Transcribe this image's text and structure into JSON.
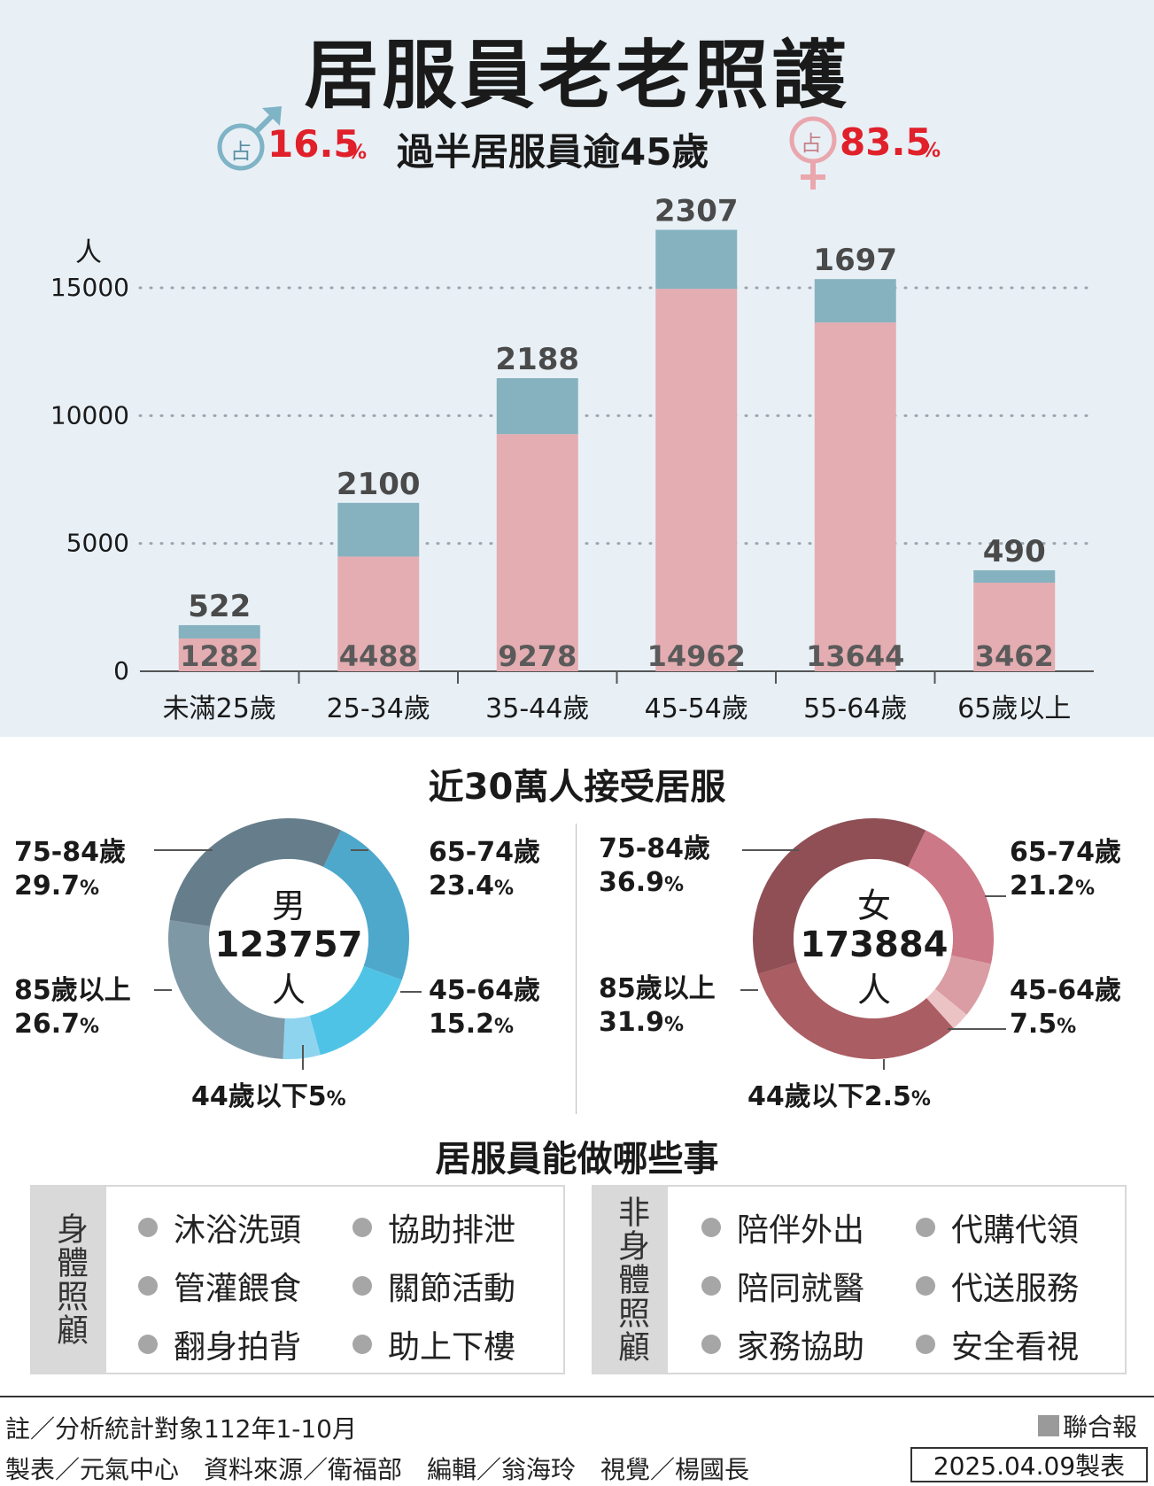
{
  "title": "居服員老老照護",
  "subtitle": {
    "text": "過半居服員逾45歲",
    "male": {
      "prefix": "占",
      "value": "16.5",
      "unit": "%"
    },
    "female": {
      "prefix": "占",
      "value": "83.5",
      "unit": "%"
    }
  },
  "chart_data": [
    {
      "type": "bar",
      "stacked": true,
      "ylabel": "人",
      "ylim": [
        0,
        15000
      ],
      "yticks": [
        0,
        5000,
        10000,
        15000
      ],
      "grid": "dotted horizontal",
      "categories": [
        "未滿25歲",
        "25-34歲",
        "35-44歲",
        "45-54歲",
        "55-64歲",
        "65歲以上"
      ],
      "series": [
        {
          "values": [
            1282,
            4488,
            9278,
            14962,
            13644,
            3462
          ],
          "color": "#e4adb2"
        },
        {
          "values": [
            522,
            2100,
            2188,
            2307,
            1697,
            490
          ],
          "color": "#86b2c0"
        }
      ]
    },
    {
      "type": "pie",
      "center": {
        "line1": "男",
        "line2": "123757",
        "line3": "人"
      },
      "slices": [
        {
          "label": "65-74歲",
          "value": 23.4,
          "color": "#4ea8cc"
        },
        {
          "label": "45-64歲",
          "value": 15.2,
          "color": "#4fc3e6"
        },
        {
          "label": "44歲以下",
          "value": 5,
          "color": "#8fd4ef"
        },
        {
          "label": "85歲以上",
          "value": 26.7,
          "color": "#7f98a5"
        },
        {
          "label": "75-84歲",
          "value": 29.7,
          "color": "#667e8b"
        }
      ]
    },
    {
      "type": "pie",
      "center": {
        "line1": "女",
        "line2": "173884",
        "line3": "人"
      },
      "slices": [
        {
          "label": "65-74歲",
          "value": 21.2,
          "color": "#cd7886"
        },
        {
          "label": "45-64歲",
          "value": 7.5,
          "color": "#d99da3"
        },
        {
          "label": "44歲以下",
          "value": 2.5,
          "color": "#ecc3c5"
        },
        {
          "label": "85歲以上",
          "value": 31.9,
          "color": "#aa5d62"
        },
        {
          "label": "75-84歲",
          "value": 36.9,
          "color": "#8f4f55"
        }
      ]
    }
  ],
  "donut_section": {
    "title": "近30萬人接受居服",
    "male_labels": {
      "a": {
        "name": "75-84歲",
        "pct": "29.7",
        "unit": "%"
      },
      "b": {
        "name": "65-74歲",
        "pct": "23.4",
        "unit": "%"
      },
      "c": {
        "name": "85歲以上",
        "pct": "26.7",
        "unit": "%"
      },
      "d": {
        "name": "45-64歲",
        "pct": "15.2",
        "unit": "%"
      },
      "e": {
        "name": "44歲以下5",
        "unit": "%"
      }
    },
    "female_labels": {
      "a": {
        "name": "75-84歲",
        "pct": "36.9",
        "unit": "%"
      },
      "b": {
        "name": "65-74歲",
        "pct": "21.2",
        "unit": "%"
      },
      "c": {
        "name": "85歲以上",
        "pct": "31.9",
        "unit": "%"
      },
      "d": {
        "name": "45-64歲",
        "pct": "7.5",
        "unit": "%"
      },
      "e": {
        "name": "44歲以下2.5",
        "unit": "%"
      }
    }
  },
  "tasks": {
    "title": "居服員能做哪些事",
    "physical": {
      "label": "身體照顧",
      "items": [
        "沐浴洗頭",
        "協助排泄",
        "管灌餵食",
        "關節活動",
        "翻身拍背",
        "助上下樓"
      ]
    },
    "nonphysical": {
      "label": "非身體照顧",
      "items": [
        "陪伴外出",
        "代購代領",
        "陪同就醫",
        "代送服務",
        "家務協助",
        "安全看視"
      ]
    }
  },
  "footer": {
    "note": "註／分析統計對象112年1-10月",
    "brand": "聯合報",
    "credits": "製表／元氣中心　資料來源／衛福部　編輯／翁海玲　視覺／楊國長",
    "date": "2025.04.09製表"
  }
}
